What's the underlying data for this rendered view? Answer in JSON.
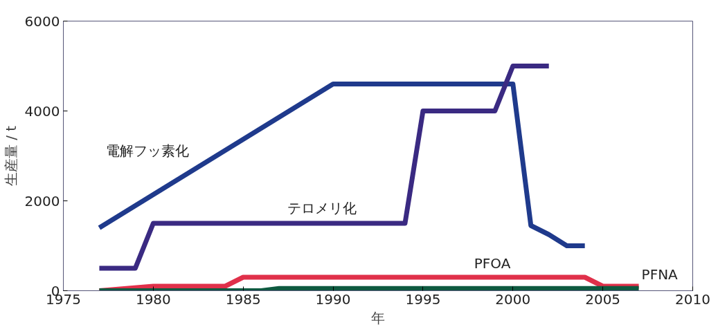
{
  "chart_data": {
    "type": "line",
    "xlabel": "年",
    "ylabel": "生産量 / t",
    "xlim": [
      1975,
      2010
    ],
    "xticks": [
      1975,
      1980,
      1985,
      1990,
      1995,
      2000,
      2005,
      2010
    ],
    "ylim": [
      0,
      6000
    ],
    "yticks": [
      0,
      2000,
      4000,
      6000
    ],
    "grid": false,
    "legend": false,
    "line_style": "solid",
    "marker": "none",
    "series": [
      {
        "name": "電解フッ素化",
        "color": "#1f3a8c",
        "x": [
          1977,
          1990,
          2000,
          2001,
          2002,
          2003,
          2004
        ],
        "values": [
          1400,
          4600,
          4600,
          1450,
          1250,
          1000,
          1000
        ]
      },
      {
        "name": "テロメリ化",
        "color": "#3a2a82",
        "x": [
          1977,
          1979,
          1980,
          1994,
          1995,
          1999,
          2000,
          2002
        ],
        "values": [
          500,
          500,
          1500,
          1500,
          4000,
          4000,
          5000,
          5000
        ]
      },
      {
        "name": "PFOA",
        "color": "#e0304a",
        "x": [
          1977,
          1980,
          1984,
          1985,
          2004,
          2005,
          2007
        ],
        "values": [
          0,
          100,
          100,
          300,
          300,
          100,
          100
        ]
      },
      {
        "name": "PFNA",
        "color": "#0e5a40",
        "x": [
          1977,
          1986,
          1987,
          2007
        ],
        "values": [
          0,
          0,
          50,
          50
        ]
      }
    ]
  }
}
